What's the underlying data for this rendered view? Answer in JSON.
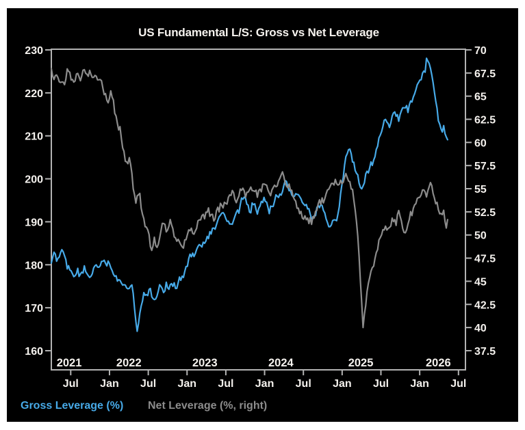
{
  "window": {
    "background": "#ffffff",
    "panel_background": "#000000",
    "axis_color": "#b3b3b3",
    "text_color": "#f5f2ee"
  },
  "chart_data": {
    "type": "line",
    "title": "US Fundamental L/S: Gross vs Net Leverage",
    "grid": false,
    "legend_position": "bottom-left",
    "legend": [
      {
        "label": "Gross Leverage (%)",
        "color": "#47aae8"
      },
      {
        "label": "Net Leverage (%, right)",
        "color": "#8c8c8c"
      }
    ],
    "x_axis": {
      "unit": "decimal_year",
      "range": [
        2021.25,
        2026.59
      ],
      "month_ticks": [
        {
          "label": "Jul",
          "t": 2021.5
        },
        {
          "label": "Jan",
          "t": 2022.0
        },
        {
          "label": "Jul",
          "t": 2022.5
        },
        {
          "label": "Jan",
          "t": 2023.0
        },
        {
          "label": "Jul",
          "t": 2023.5
        },
        {
          "label": "Jan",
          "t": 2024.0
        },
        {
          "label": "Jul",
          "t": 2024.5
        },
        {
          "label": "Jan",
          "t": 2025.0
        },
        {
          "label": "Jul",
          "t": 2025.5
        },
        {
          "label": "Jan",
          "t": 2026.0
        },
        {
          "label": "Jul",
          "t": 2026.5
        }
      ],
      "year_labels": [
        {
          "label": "2021",
          "t": 2021.48
        },
        {
          "label": "2022",
          "t": 2022.25
        },
        {
          "label": "2023",
          "t": 2023.23
        },
        {
          "label": "2024",
          "t": 2024.21
        },
        {
          "label": "2025",
          "t": 2025.24
        },
        {
          "label": "2026",
          "t": 2026.24
        }
      ]
    },
    "left_axis": {
      "series": "Gross Leverage (%)",
      "range": [
        155.55,
        230.16
      ],
      "ticks": [
        160,
        170,
        180,
        190,
        200,
        210,
        220,
        230
      ]
    },
    "right_axis": {
      "series": "Net Leverage (%, right)",
      "range": [
        35.43,
        70.07
      ],
      "ticks": [
        37.5,
        40,
        42.5,
        45,
        47.5,
        50,
        52.5,
        55,
        57.5,
        60,
        62.5,
        65,
        67.5,
        70
      ]
    },
    "series": [
      {
        "name": "Gross Leverage (%)",
        "axis": "left",
        "color": "#47aae8",
        "noise_amplitude": 0.8,
        "points": [
          [
            2021.25,
            181.5
          ],
          [
            2021.29,
            183
          ],
          [
            2021.33,
            181
          ],
          [
            2021.38,
            183.5
          ],
          [
            2021.42,
            181.5
          ],
          [
            2021.46,
            179.5
          ],
          [
            2021.5,
            178.5
          ],
          [
            2021.54,
            177
          ],
          [
            2021.58,
            178.5
          ],
          [
            2021.63,
            177
          ],
          [
            2021.67,
            179
          ],
          [
            2021.71,
            177.5
          ],
          [
            2021.75,
            177
          ],
          [
            2021.79,
            178.5
          ],
          [
            2021.83,
            180
          ],
          [
            2021.88,
            179
          ],
          [
            2021.92,
            181.5
          ],
          [
            2021.96,
            180.5
          ],
          [
            2022.0,
            181
          ],
          [
            2022.04,
            179.5
          ],
          [
            2022.08,
            177.5
          ],
          [
            2022.13,
            175.5
          ],
          [
            2022.17,
            174
          ],
          [
            2022.21,
            175
          ],
          [
            2022.25,
            173
          ],
          [
            2022.29,
            175.5
          ],
          [
            2022.33,
            168
          ],
          [
            2022.36,
            163.5
          ],
          [
            2022.4,
            171
          ],
          [
            2022.44,
            173.5
          ],
          [
            2022.48,
            172.5
          ],
          [
            2022.52,
            174.5
          ],
          [
            2022.56,
            171.5
          ],
          [
            2022.6,
            173
          ],
          [
            2022.65,
            175
          ],
          [
            2022.69,
            174
          ],
          [
            2022.73,
            176
          ],
          [
            2022.77,
            175
          ],
          [
            2022.81,
            176.5
          ],
          [
            2022.85,
            175
          ],
          [
            2022.9,
            176.5
          ],
          [
            2022.94,
            177.5
          ],
          [
            2022.98,
            179
          ],
          [
            2023.04,
            181.5
          ],
          [
            2023.1,
            182.5
          ],
          [
            2023.15,
            184
          ],
          [
            2023.21,
            185
          ],
          [
            2023.27,
            186.5
          ],
          [
            2023.33,
            187.5
          ],
          [
            2023.38,
            189.5
          ],
          [
            2023.44,
            191
          ],
          [
            2023.5,
            191.5
          ],
          [
            2023.56,
            189.5
          ],
          [
            2023.6,
            190.5
          ],
          [
            2023.65,
            193
          ],
          [
            2023.71,
            194.5
          ],
          [
            2023.75,
            195
          ],
          [
            2023.81,
            192.5
          ],
          [
            2023.85,
            193.5
          ],
          [
            2023.9,
            192.5
          ],
          [
            2023.96,
            194.5
          ],
          [
            2024.0,
            195.5
          ],
          [
            2024.06,
            193
          ],
          [
            2024.1,
            194
          ],
          [
            2024.15,
            196
          ],
          [
            2024.21,
            197
          ],
          [
            2024.27,
            198.5
          ],
          [
            2024.33,
            198
          ],
          [
            2024.4,
            196
          ],
          [
            2024.46,
            195
          ],
          [
            2024.52,
            193.5
          ],
          [
            2024.58,
            192
          ],
          [
            2024.63,
            191
          ],
          [
            2024.69,
            193.5
          ],
          [
            2024.73,
            194.5
          ],
          [
            2024.77,
            192
          ],
          [
            2024.81,
            190
          ],
          [
            2024.85,
            188.5
          ],
          [
            2024.9,
            190.5
          ],
          [
            2024.94,
            190
          ],
          [
            2024.98,
            197
          ],
          [
            2025.02,
            202
          ],
          [
            2025.06,
            206
          ],
          [
            2025.1,
            207
          ],
          [
            2025.14,
            204.5
          ],
          [
            2025.18,
            201.5
          ],
          [
            2025.22,
            199.5
          ],
          [
            2025.27,
            197.5
          ],
          [
            2025.31,
            201
          ],
          [
            2025.35,
            203
          ],
          [
            2025.4,
            205
          ],
          [
            2025.44,
            207
          ],
          [
            2025.48,
            209.5
          ],
          [
            2025.52,
            211.5
          ],
          [
            2025.56,
            213.5
          ],
          [
            2025.6,
            211.5
          ],
          [
            2025.65,
            214
          ],
          [
            2025.69,
            215.5
          ],
          [
            2025.73,
            214
          ],
          [
            2025.77,
            216
          ],
          [
            2025.81,
            217.5
          ],
          [
            2025.85,
            216
          ],
          [
            2025.9,
            218
          ],
          [
            2025.94,
            220
          ],
          [
            2025.98,
            222
          ],
          [
            2026.02,
            223.5
          ],
          [
            2026.06,
            225
          ],
          [
            2026.1,
            227.5
          ],
          [
            2026.13,
            226
          ],
          [
            2026.16,
            223
          ],
          [
            2026.19,
            220
          ],
          [
            2026.22,
            217
          ],
          [
            2026.25,
            213.5
          ],
          [
            2026.28,
            211
          ],
          [
            2026.31,
            213
          ],
          [
            2026.33,
            210.5
          ],
          [
            2026.36,
            208.5
          ]
        ]
      },
      {
        "name": "Net Leverage (%, right)",
        "axis": "right",
        "color": "#8c8c8c",
        "noise_amplitude": 0.4,
        "points": [
          [
            2021.25,
            68.5
          ],
          [
            2021.28,
            66.5
          ],
          [
            2021.31,
            67.8
          ],
          [
            2021.35,
            66
          ],
          [
            2021.38,
            67
          ],
          [
            2021.42,
            66.3
          ],
          [
            2021.46,
            68.2
          ],
          [
            2021.5,
            67.2
          ],
          [
            2021.54,
            66
          ],
          [
            2021.58,
            67.5
          ],
          [
            2021.62,
            66.3
          ],
          [
            2021.66,
            67.8
          ],
          [
            2021.7,
            66.8
          ],
          [
            2021.74,
            67.8
          ],
          [
            2021.78,
            67
          ],
          [
            2021.82,
            67.5
          ],
          [
            2021.86,
            66.5
          ],
          [
            2021.9,
            66
          ],
          [
            2021.94,
            65
          ],
          [
            2021.98,
            64.3
          ],
          [
            2022.02,
            65.2
          ],
          [
            2022.06,
            64
          ],
          [
            2022.1,
            62.5
          ],
          [
            2022.14,
            61
          ],
          [
            2022.18,
            59
          ],
          [
            2022.22,
            57.5
          ],
          [
            2022.26,
            58.5
          ],
          [
            2022.3,
            55.5
          ],
          [
            2022.34,
            53.5
          ],
          [
            2022.38,
            54.8
          ],
          [
            2022.42,
            52.5
          ],
          [
            2022.46,
            51
          ],
          [
            2022.5,
            50.2
          ],
          [
            2022.54,
            48.5
          ],
          [
            2022.58,
            49.8
          ],
          [
            2022.62,
            48.2
          ],
          [
            2022.66,
            50
          ],
          [
            2022.7,
            51.2
          ],
          [
            2022.74,
            50
          ],
          [
            2022.78,
            51.5
          ],
          [
            2022.82,
            50.3
          ],
          [
            2022.86,
            49
          ],
          [
            2022.9,
            50
          ],
          [
            2022.94,
            48.8
          ],
          [
            2022.98,
            49.8
          ],
          [
            2023.04,
            50.8
          ],
          [
            2023.1,
            50
          ],
          [
            2023.16,
            51.5
          ],
          [
            2023.22,
            52
          ],
          [
            2023.28,
            52.8
          ],
          [
            2023.34,
            52
          ],
          [
            2023.4,
            53.3
          ],
          [
            2023.46,
            53
          ],
          [
            2023.52,
            53.8
          ],
          [
            2023.58,
            54.3
          ],
          [
            2023.64,
            53.5
          ],
          [
            2023.7,
            54.8
          ],
          [
            2023.76,
            54
          ],
          [
            2023.82,
            55
          ],
          [
            2023.88,
            54.3
          ],
          [
            2023.94,
            55
          ],
          [
            2024.0,
            55.3
          ],
          [
            2024.06,
            54.3
          ],
          [
            2024.12,
            55.5
          ],
          [
            2024.18,
            56
          ],
          [
            2024.24,
            56.3
          ],
          [
            2024.3,
            55.3
          ],
          [
            2024.36,
            54
          ],
          [
            2024.42,
            53.3
          ],
          [
            2024.48,
            52.3
          ],
          [
            2024.54,
            51.8
          ],
          [
            2024.6,
            51.3
          ],
          [
            2024.66,
            52.5
          ],
          [
            2024.72,
            53.5
          ],
          [
            2024.78,
            54
          ],
          [
            2024.84,
            54.8
          ],
          [
            2024.9,
            55.3
          ],
          [
            2024.96,
            55.8
          ],
          [
            2025.02,
            55.5
          ],
          [
            2025.06,
            56.5
          ],
          [
            2025.1,
            55.8
          ],
          [
            2025.14,
            55
          ],
          [
            2025.18,
            52.5
          ],
          [
            2025.22,
            47.5
          ],
          [
            2025.25,
            43
          ],
          [
            2025.27,
            40
          ],
          [
            2025.3,
            42.5
          ],
          [
            2025.33,
            44.5
          ],
          [
            2025.37,
            45.8
          ],
          [
            2025.41,
            47.3
          ],
          [
            2025.45,
            48.3
          ],
          [
            2025.49,
            49.3
          ],
          [
            2025.53,
            50.3
          ],
          [
            2025.57,
            51
          ],
          [
            2025.61,
            50.3
          ],
          [
            2025.65,
            51.8
          ],
          [
            2025.69,
            51
          ],
          [
            2025.73,
            52.2
          ],
          [
            2025.77,
            51.3
          ],
          [
            2025.81,
            50.5
          ],
          [
            2025.85,
            51.3
          ],
          [
            2025.89,
            52
          ],
          [
            2025.93,
            52.8
          ],
          [
            2025.97,
            53.8
          ],
          [
            2026.01,
            54.3
          ],
          [
            2026.05,
            55
          ],
          [
            2026.09,
            54.3
          ],
          [
            2026.13,
            55.5
          ],
          [
            2026.16,
            54.8
          ],
          [
            2026.19,
            53.8
          ],
          [
            2026.22,
            53
          ],
          [
            2026.25,
            52.3
          ],
          [
            2026.28,
            51.5
          ],
          [
            2026.31,
            52.5
          ],
          [
            2026.34,
            51
          ],
          [
            2026.36,
            51.5
          ]
        ]
      }
    ]
  }
}
